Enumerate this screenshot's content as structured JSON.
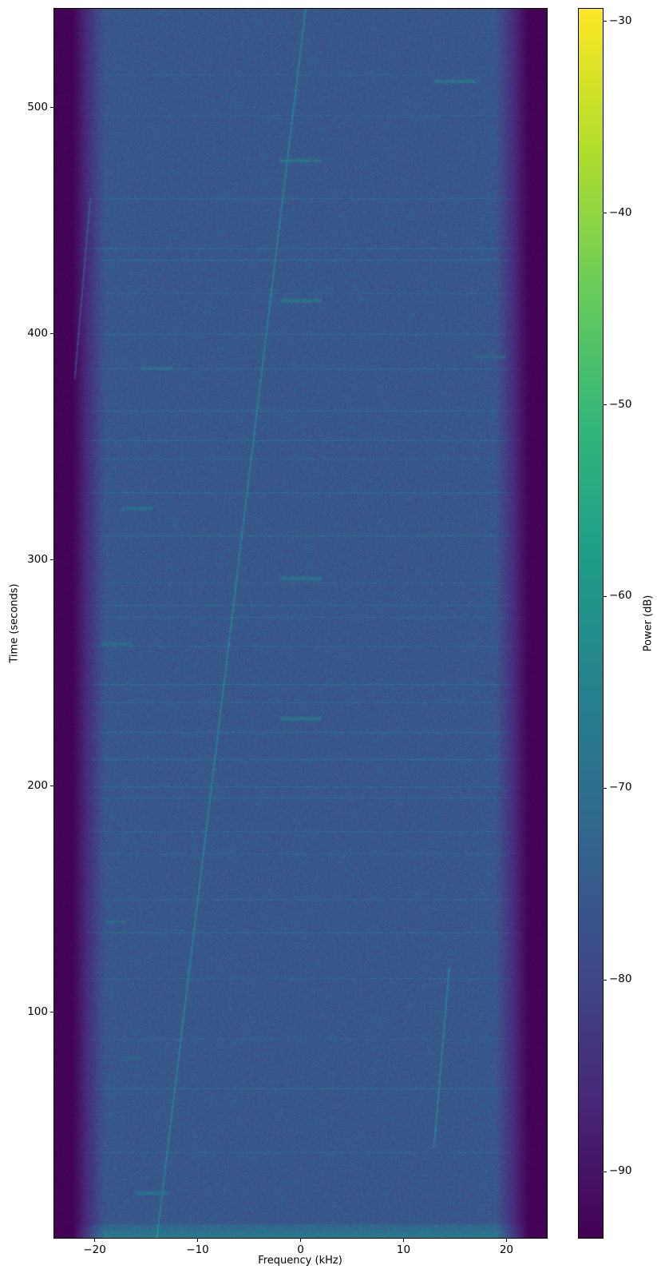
{
  "chart_data": {
    "type": "heatmap",
    "subtype": "spectrogram",
    "title": "",
    "xlabel": "Frequency (kHz)",
    "ylabel": "Time (seconds)",
    "xlim": [
      -24,
      24
    ],
    "ylim": [
      0,
      544
    ],
    "xticks": [
      -20,
      -10,
      0,
      10,
      20
    ],
    "xtick_labels": [
      "−20",
      "−10",
      "0",
      "10",
      "20"
    ],
    "yticks": [
      100,
      200,
      300,
      400,
      500
    ],
    "ytick_labels": [
      "100",
      "200",
      "300",
      "400",
      "500"
    ],
    "colormap": "viridis",
    "colorbar": {
      "label": "Power (dB)",
      "range": [
        -93.5,
        -29.3
      ],
      "ticks": [
        -30,
        -40,
        -50,
        -60,
        -70,
        -80,
        -90
      ],
      "tick_labels": [
        "−30",
        "−40",
        "−50",
        "−60",
        "−70",
        "−80",
        "−90"
      ]
    },
    "noise_floor_db": -76,
    "band_edge_db": -93,
    "passband_khz": [
      -21,
      21
    ],
    "bursts": [
      {
        "freq_khz": 15,
        "time_s": 512,
        "width_khz": 4,
        "power_db": -62
      },
      {
        "freq_khz": 0,
        "time_s": 477,
        "width_khz": 4,
        "power_db": -62
      },
      {
        "freq_khz": 0,
        "time_s": 415,
        "width_khz": 4,
        "power_db": -62
      },
      {
        "freq_khz": 18.5,
        "time_s": 390,
        "width_khz": 3,
        "power_db": -68
      },
      {
        "freq_khz": -14,
        "time_s": 385,
        "width_khz": 3,
        "power_db": -64
      },
      {
        "freq_khz": -16,
        "time_s": 323,
        "width_khz": 3,
        "power_db": -64
      },
      {
        "freq_khz": 0,
        "time_s": 292,
        "width_khz": 4,
        "power_db": -62
      },
      {
        "freq_khz": -18,
        "time_s": 263,
        "width_khz": 3,
        "power_db": -65
      },
      {
        "freq_khz": 0,
        "time_s": 230,
        "width_khz": 4,
        "power_db": -62
      },
      {
        "freq_khz": -18,
        "time_s": 140,
        "width_khz": 2,
        "power_db": -68
      },
      {
        "freq_khz": -16.5,
        "time_s": 80,
        "width_khz": 2,
        "power_db": -68
      },
      {
        "freq_khz": -14.5,
        "time_s": 20,
        "width_khz": 3,
        "power_db": -63
      }
    ],
    "horizontal_lines_s": [
      515,
      497,
      460,
      438,
      433,
      418,
      400,
      385,
      366,
      353,
      345,
      330,
      311,
      290,
      280,
      275,
      262,
      245,
      237,
      224,
      212,
      200,
      195,
      180,
      170,
      150,
      135,
      115,
      88,
      66,
      38
    ],
    "chirps": [
      {
        "start": [
          -14,
          0
        ],
        "end": [
          0.5,
          544
        ]
      },
      {
        "start": [
          -22,
          380
        ],
        "end": [
          -20.5,
          460
        ]
      },
      {
        "start": [
          13,
          40
        ],
        "end": [
          14.5,
          120
        ]
      }
    ]
  }
}
